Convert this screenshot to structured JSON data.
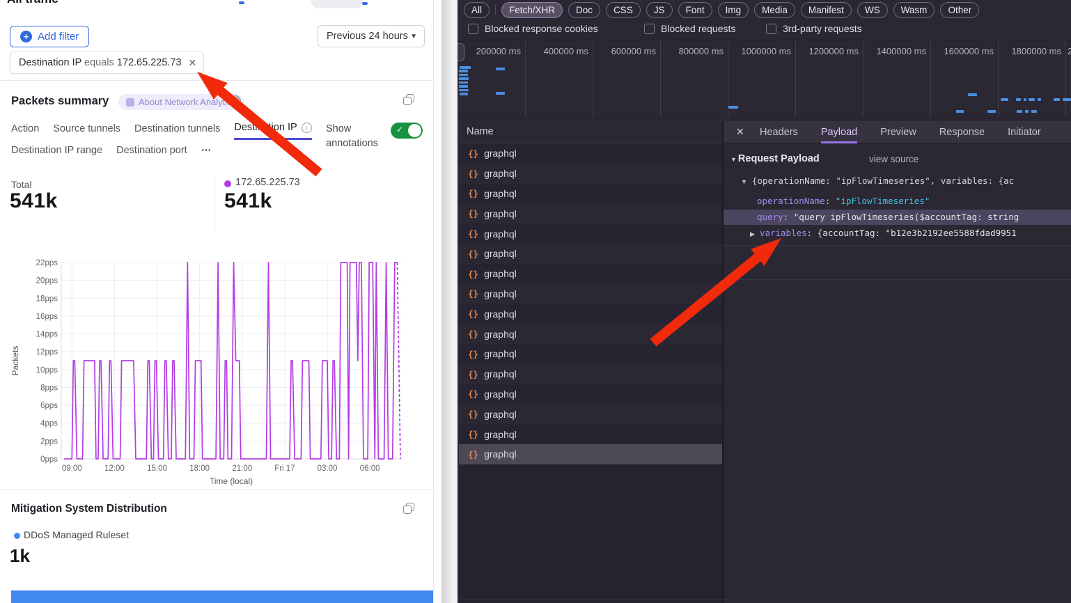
{
  "page": {
    "title": "All traffic"
  },
  "left_panel": {
    "add_filter_label": "Add filter",
    "time_range_label": "Previous 24 hours",
    "filter_chip": {
      "field": "Destination IP",
      "operator": "equals",
      "value": "172.65.225.73"
    },
    "packets_summary": {
      "title": "Packets summary",
      "tooltip_label": "About Network Analytics",
      "tabs_row1": [
        "Action",
        "Source tunnels",
        "Destination tunnels",
        "Destination IP"
      ],
      "active_tab": "Destination IP",
      "tabs_row2": [
        "Destination IP range",
        "Destination port",
        "⋯"
      ],
      "show_annotations_label": "Show annotations",
      "stats": {
        "total_label": "Total",
        "total_value": "541k",
        "series_label": "172.65.225.73",
        "series_value": "541k",
        "series_dot_color": "#b23ce4"
      }
    },
    "mitigation": {
      "title": "Mitigation System Distribution",
      "legend_label": "DDoS Managed Ruleset",
      "value": "1k",
      "bar_color": "#4289f0"
    }
  },
  "chart_data": {
    "type": "line",
    "title": "Packets summary — Destination IP",
    "xlabel": "Time (local)",
    "ylabel": "Packets",
    "y_unit": "pps",
    "ylim": [
      0,
      22
    ],
    "y_ticks": [
      0,
      2,
      4,
      6,
      8,
      10,
      12,
      14,
      16,
      18,
      20,
      22
    ],
    "x_ticks": [
      {
        "t": 0.75,
        "label": "09:00"
      },
      {
        "t": 3.75,
        "label": "12:00"
      },
      {
        "t": 6.75,
        "label": "15:00"
      },
      {
        "t": 9.75,
        "label": "18:00"
      },
      {
        "t": 12.75,
        "label": "21:00"
      },
      {
        "t": 15.75,
        "label": "Fri 17"
      },
      {
        "t": 18.75,
        "label": "03:00"
      },
      {
        "t": 21.75,
        "label": "06:00"
      }
    ],
    "xlim_hours": [
      0,
      24.2
    ],
    "grid": true,
    "legend_position": "top",
    "series": [
      {
        "name": "172.65.225.73",
        "color": "#b23ce4",
        "points": [
          [
            0.2,
            0
          ],
          [
            0.75,
            0
          ],
          [
            0.85,
            11
          ],
          [
            0.95,
            11
          ],
          [
            1.1,
            0
          ],
          [
            1.5,
            0
          ],
          [
            1.6,
            11
          ],
          [
            2.35,
            11
          ],
          [
            2.45,
            0
          ],
          [
            2.6,
            0
          ],
          [
            2.7,
            11
          ],
          [
            2.8,
            11
          ],
          [
            2.95,
            0
          ],
          [
            3.3,
            0
          ],
          [
            3.4,
            11
          ],
          [
            3.5,
            11
          ],
          [
            3.65,
            0
          ],
          [
            4.15,
            0
          ],
          [
            4.25,
            11
          ],
          [
            5.1,
            11
          ],
          [
            5.25,
            0
          ],
          [
            6.0,
            0
          ],
          [
            6.1,
            11
          ],
          [
            6.2,
            11
          ],
          [
            6.35,
            0
          ],
          [
            6.5,
            0
          ],
          [
            6.6,
            11
          ],
          [
            6.7,
            11
          ],
          [
            6.85,
            0
          ],
          [
            7.2,
            0
          ],
          [
            7.3,
            11
          ],
          [
            7.4,
            11
          ],
          [
            7.55,
            0
          ],
          [
            7.75,
            0
          ],
          [
            7.85,
            11
          ],
          [
            7.95,
            11
          ],
          [
            8.1,
            0
          ],
          [
            8.75,
            0
          ],
          [
            8.9,
            22
          ],
          [
            9.05,
            0
          ],
          [
            9.35,
            0
          ],
          [
            9.45,
            11
          ],
          [
            9.85,
            11
          ],
          [
            9.95,
            0
          ],
          [
            10.9,
            0
          ],
          [
            11.05,
            22
          ],
          [
            11.2,
            0
          ],
          [
            11.45,
            0
          ],
          [
            11.55,
            11
          ],
          [
            11.65,
            11
          ],
          [
            11.75,
            0
          ],
          [
            12.0,
            0
          ],
          [
            12.15,
            22
          ],
          [
            12.3,
            11
          ],
          [
            12.55,
            11
          ],
          [
            12.65,
            0
          ],
          [
            14.45,
            0
          ],
          [
            14.6,
            22
          ],
          [
            14.75,
            0
          ],
          [
            16.1,
            0
          ],
          [
            16.2,
            11
          ],
          [
            16.3,
            11
          ],
          [
            16.45,
            0
          ],
          [
            16.9,
            0
          ],
          [
            17.0,
            11
          ],
          [
            17.45,
            11
          ],
          [
            17.55,
            0
          ],
          [
            18.3,
            0
          ],
          [
            18.4,
            11
          ],
          [
            18.75,
            11
          ],
          [
            18.85,
            0
          ],
          [
            19.05,
            0
          ],
          [
            19.15,
            11
          ],
          [
            19.25,
            11
          ],
          [
            19.4,
            0
          ],
          [
            19.6,
            0
          ],
          [
            19.7,
            22
          ],
          [
            20.15,
            22
          ],
          [
            20.25,
            0
          ],
          [
            20.35,
            22
          ],
          [
            20.8,
            22
          ],
          [
            20.9,
            11
          ],
          [
            21.0,
            22
          ],
          [
            21.15,
            22
          ],
          [
            21.3,
            0
          ],
          [
            21.6,
            0
          ],
          [
            21.7,
            22
          ],
          [
            21.95,
            22
          ],
          [
            22.1,
            0
          ],
          [
            22.2,
            22
          ],
          [
            22.35,
            0
          ],
          [
            22.75,
            0
          ],
          [
            22.9,
            22
          ],
          [
            23.05,
            0
          ],
          [
            23.35,
            0
          ],
          [
            23.5,
            22
          ],
          [
            23.68,
            22
          ]
        ]
      }
    ],
    "dashed_tail": [
      [
        23.68,
        22
      ],
      [
        23.9,
        0
      ]
    ]
  },
  "devtools": {
    "filter_pills": [
      "All",
      "Fetch/XHR",
      "Doc",
      "CSS",
      "JS",
      "Font",
      "Img",
      "Media",
      "Manifest",
      "WS",
      "Wasm",
      "Other"
    ],
    "active_pill": "Fetch/XHR",
    "checkboxes": [
      "Blocked response cookies",
      "Blocked requests",
      "3rd-party requests"
    ],
    "timeline": {
      "labels": [
        "200000 ms",
        "400000 ms",
        "600000 ms",
        "800000 ms",
        "1000000 ms",
        "1200000 ms",
        "1400000 ms",
        "1600000 ms",
        "1800000 ms"
      ],
      "edge_label": "2",
      "stack_marks": [
        [
          660,
          95,
          16
        ],
        [
          659,
          100,
          13
        ],
        [
          659,
          105.5,
          13
        ],
        [
          659,
          111,
          14
        ],
        [
          659,
          116.5,
          13
        ],
        [
          659,
          122,
          13
        ],
        [
          659,
          127.5,
          14
        ],
        [
          660,
          133,
          12
        ]
      ],
      "marks": [
        [
          712,
          97,
          13
        ],
        [
          712,
          132,
          13
        ],
        [
          1046,
          152,
          14
        ],
        [
          1390,
          134,
          13
        ],
        [
          1373,
          158,
          11
        ],
        [
          1418,
          158,
          12
        ],
        [
          1437,
          141,
          11
        ],
        [
          1459,
          141,
          7
        ],
        [
          1470,
          141,
          4
        ],
        [
          1477,
          141,
          9
        ],
        [
          1490,
          141,
          5
        ],
        [
          1513,
          141,
          9
        ],
        [
          1526,
          141,
          12
        ],
        [
          1460,
          158,
          8
        ],
        [
          1472,
          158,
          5
        ],
        [
          1481,
          158,
          8
        ]
      ]
    },
    "requests": {
      "header": "Name",
      "row_label": "graphql",
      "count": 16,
      "selected_index": 15,
      "icon": "braces-icon"
    },
    "detail": {
      "tabs": [
        "Headers",
        "Payload",
        "Preview",
        "Response",
        "Initiator"
      ],
      "active_tab": "Payload",
      "close_label": "✕",
      "payload": {
        "section_title": "Request Payload",
        "view_source_label": "view source",
        "preview_line": "{operationName: \"ipFlowTimeseries\", variables: {ac",
        "rows": [
          {
            "key": "operationName",
            "value": "\"ipFlowTimeseries\"",
            "value_style": "string",
            "highlighted": false,
            "expandable": false
          },
          {
            "key": "query",
            "value": "\"query ipFlowTimeseries($accountTag: string",
            "value_style": "plain",
            "highlighted": true,
            "expandable": false
          },
          {
            "key": "variables",
            "value": "{accountTag: \"b12e3b2192ee5588fdad9951",
            "value_style": "plain",
            "highlighted": false,
            "expandable": true
          }
        ]
      }
    }
  },
  "annotations": {
    "arrow_color": "#f22a0c",
    "arrows": [
      {
        "from": [
          458,
          248
        ],
        "to": [
          283,
          103
        ]
      },
      {
        "from": [
          938,
          492
        ],
        "to": [
          1122,
          342
        ]
      }
    ]
  }
}
